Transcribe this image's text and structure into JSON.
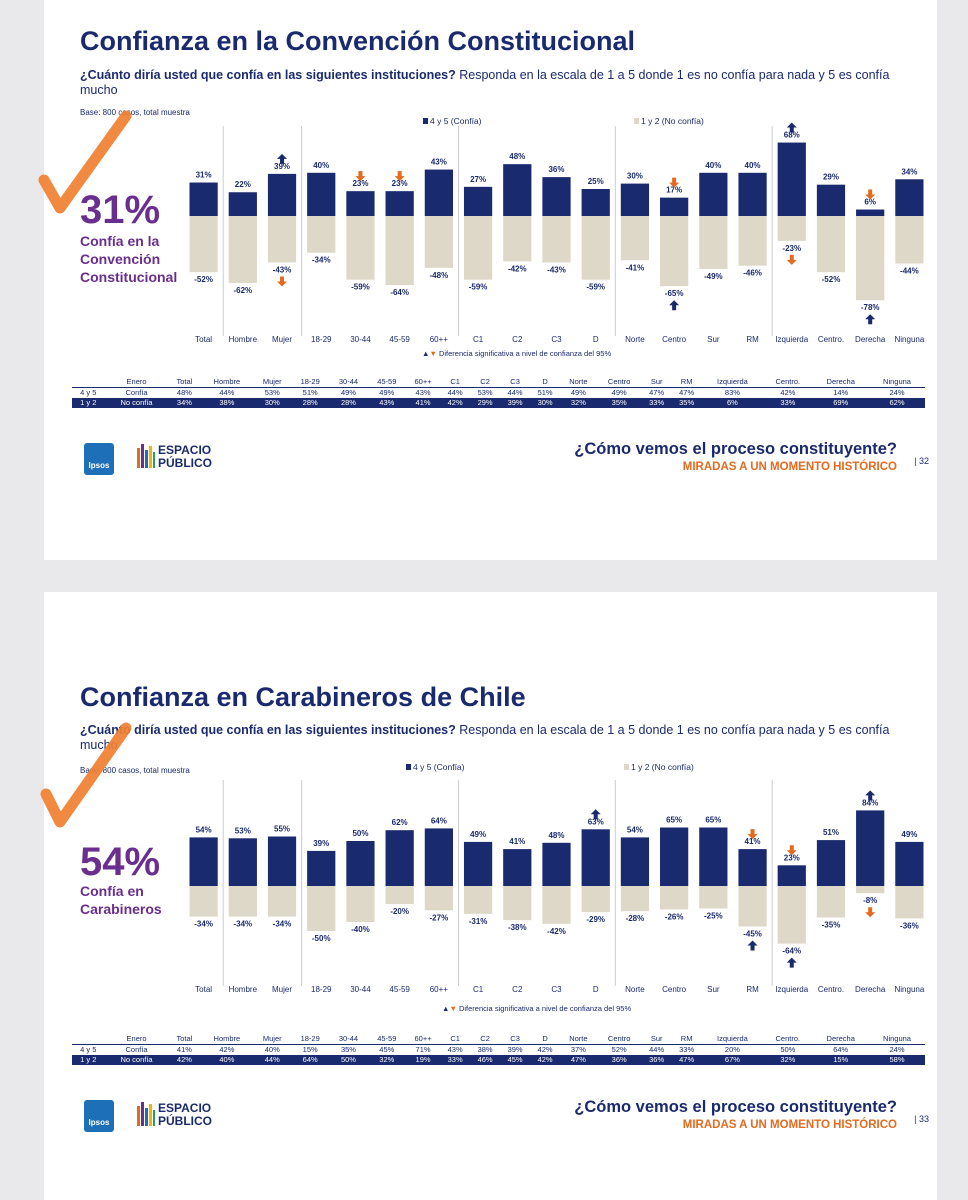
{
  "slides": [
    {
      "title": "Confianza en la Convención Constitucional",
      "question_bold": "¿Cuánto diría usted que confía en las siguientes instituciones?",
      "question_rest": " Responda en la escala de 1 a 5 donde 1 es no confía para nada y 5 es confía mucho",
      "base": "Base: 800 casos, total muestra",
      "legend_positive": "4 y 5 (Confía)",
      "legend_negative": "1 y 2 (No confía)",
      "big_number": "31%",
      "big_label": "Confía en la\nConvención\nConstitucional",
      "note": "Diferencia significativa a nivel de confianza del 95%",
      "tagline_1": "¿Cómo vemos el proceso constituyente?",
      "tagline_2": "MIRADAS A UN MOMENTO HISTÓRICO",
      "page_number": "| 32",
      "table": {
        "header_label": "Enero",
        "rows": [
          {
            "key": "4 y 5",
            "label": "Confía",
            "values": [
              "48%",
              "44%",
              "53%",
              "51%",
              "49%",
              "49%",
              "43%",
              "44%",
              "53%",
              "44%",
              "51%",
              "49%",
              "49%",
              "47%",
              "47%",
              "83%",
              "42%",
              "14%",
              "24%"
            ]
          },
          {
            "key": "1 y 2",
            "label": "No confía",
            "values": [
              "34%",
              "38%",
              "30%",
              "28%",
              "28%",
              "43%",
              "41%",
              "42%",
              "29%",
              "39%",
              "30%",
              "32%",
              "35%",
              "33%",
              "35%",
              "6%",
              "33%",
              "69%",
              "62%"
            ]
          }
        ]
      }
    },
    {
      "title": "Confianza en Carabineros de Chile",
      "question_bold": "¿Cuánto diría usted que confía en las siguientes instituciones?",
      "question_rest": " Responda en la escala de 1 a 5 donde 1 es no confía para nada y 5 es confía mucho",
      "base": "Base: 800 casos, total muestra",
      "legend_positive": "4 y 5 (Confía)",
      "legend_negative": "1 y 2 (No confía)",
      "big_number": "54%",
      "big_label": "Confía en\nCarabineros",
      "note": "Diferencia significativa a nivel de confianza del 95%",
      "tagline_1": "¿Cómo vemos el proceso constituyente?",
      "tagline_2": "MIRADAS A UN MOMENTO HISTÓRICO",
      "page_number": "| 33",
      "table": {
        "header_label": "Enero",
        "rows": [
          {
            "key": "4 y 5",
            "label": "Confía",
            "values": [
              "41%",
              "42%",
              "40%",
              "15%",
              "35%",
              "45%",
              "71%",
              "43%",
              "38%",
              "39%",
              "42%",
              "37%",
              "52%",
              "44%",
              "33%",
              "20%",
              "50%",
              "64%",
              "24%"
            ]
          },
          {
            "key": "1 y 2",
            "label": "No confía",
            "values": [
              "42%",
              "40%",
              "44%",
              "64%",
              "50%",
              "32%",
              "19%",
              "33%",
              "46%",
              "45%",
              "42%",
              "47%",
              "36%",
              "36%",
              "47%",
              "67%",
              "32%",
              "15%",
              "58%"
            ]
          }
        ]
      }
    }
  ],
  "logos": {
    "ipsos": "Ipsos",
    "espacio_publico": "ESPACIO\nPÚBLICO"
  },
  "colors": {
    "positive": "#1a2a6e",
    "negative": "#ddd8c8",
    "accent_orange": "#e36a1f",
    "accent_purple": "#6a2e8f",
    "checkmark": "#f08030"
  },
  "chart_data": [
    {
      "type": "bar",
      "title": "Confianza en la Convención Constitucional",
      "categories": [
        "Total",
        "Hombre",
        "Mujer",
        "18-29",
        "30-44",
        "45-59",
        "60++",
        "C1",
        "C2",
        "C3",
        "D",
        "Norte",
        "Centro",
        "Sur",
        "RM",
        "Izquierda",
        "Centro.",
        "Derecha",
        "Ninguna"
      ],
      "series": [
        {
          "name": "4 y 5 (Confía)",
          "values": [
            31,
            22,
            39,
            40,
            23,
            23,
            43,
            27,
            48,
            36,
            25,
            30,
            17,
            40,
            40,
            68,
            29,
            6,
            34
          ]
        },
        {
          "name": "1 y 2 (No confía)",
          "values": [
            -52,
            -62,
            -43,
            -34,
            -59,
            -64,
            -48,
            -59,
            -42,
            -43,
            -59,
            -41,
            -65,
            -49,
            -46,
            -23,
            -52,
            -78,
            -44
          ]
        }
      ],
      "significance_markers": [
        {
          "category": "Mujer",
          "series": "4 y 5 (Confía)",
          "direction": "up"
        },
        {
          "category": "30-44",
          "series": "4 y 5 (Confía)",
          "direction": "down"
        },
        {
          "category": "45-59",
          "series": "4 y 5 (Confía)",
          "direction": "down"
        },
        {
          "category": "Centro",
          "series": "4 y 5 (Confía)",
          "direction": "down"
        },
        {
          "category": "Izquierda",
          "series": "4 y 5 (Confía)",
          "direction": "up"
        },
        {
          "category": "Derecha",
          "series": "4 y 5 (Confía)",
          "direction": "down"
        },
        {
          "category": "Mujer",
          "series": "1 y 2 (No confía)",
          "direction": "down"
        },
        {
          "category": "Centro",
          "series": "1 y 2 (No confía)",
          "direction": "up"
        },
        {
          "category": "Izquierda",
          "series": "1 y 2 (No confía)",
          "direction": "down"
        },
        {
          "category": "Derecha",
          "series": "1 y 2 (No confía)",
          "direction": "up"
        }
      ],
      "group_separators_after": [
        "Total",
        "Mujer",
        "60++",
        "D",
        "RM"
      ],
      "ylim": [
        -85,
        75
      ]
    },
    {
      "type": "bar",
      "title": "Confianza en Carabineros de Chile",
      "categories": [
        "Total",
        "Hombre",
        "Mujer",
        "18-29",
        "30-44",
        "45-59",
        "60++",
        "C1",
        "C2",
        "C3",
        "D",
        "Norte",
        "Centro",
        "Sur",
        "RM",
        "Izquierda",
        "Centro.",
        "Derecha",
        "Ninguna"
      ],
      "series": [
        {
          "name": "4 y 5 (Confía)",
          "values": [
            54,
            53,
            55,
            39,
            50,
            62,
            64,
            49,
            41,
            48,
            63,
            54,
            65,
            65,
            41,
            23,
            51,
            84,
            49
          ]
        },
        {
          "name": "1 y 2 (No confía)",
          "values": [
            -34,
            -34,
            -34,
            -50,
            -40,
            -20,
            -27,
            -31,
            -38,
            -42,
            -29,
            -28,
            -26,
            -25,
            -45,
            -64,
            -35,
            -8,
            -36
          ]
        }
      ],
      "significance_markers": [
        {
          "category": "D",
          "series": "4 y 5 (Confía)",
          "direction": "up"
        },
        {
          "category": "RM",
          "series": "4 y 5 (Confía)",
          "direction": "down"
        },
        {
          "category": "Izquierda",
          "series": "4 y 5 (Confía)",
          "direction": "down"
        },
        {
          "category": "Derecha",
          "series": "4 y 5 (Confía)",
          "direction": "up"
        },
        {
          "category": "RM",
          "series": "1 y 2 (No confía)",
          "direction": "up"
        },
        {
          "category": "Izquierda",
          "series": "1 y 2 (No confía)",
          "direction": "up"
        },
        {
          "category": "Derecha",
          "series": "1 y 2 (No confía)",
          "direction": "down"
        }
      ],
      "group_separators_after": [
        "Total",
        "Mujer",
        "60++",
        "D",
        "RM"
      ],
      "ylim": [
        -70,
        95
      ]
    }
  ]
}
